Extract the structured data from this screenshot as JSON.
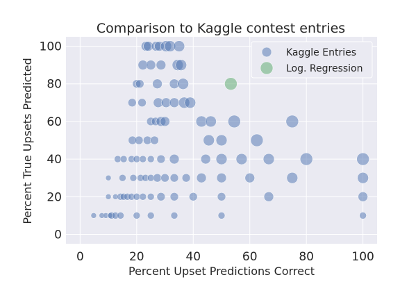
{
  "chart_data": {
    "type": "scatter",
    "title": "Comparison to Kaggle contest entries",
    "xlabel": "Percent Upset Predictions Correct",
    "ylabel": "Percent True Upsets Predicted",
    "xlim": [
      -5,
      105
    ],
    "ylim": [
      -5,
      105
    ],
    "xticks": [
      0,
      20,
      40,
      60,
      80,
      100
    ],
    "yticks": [
      0,
      20,
      40,
      60,
      80,
      100
    ],
    "grid": true,
    "legend": "top-right",
    "series": [
      {
        "name": "Kaggle Entries",
        "color": "#4c72b0",
        "points": [
          {
            "x": 4.8,
            "y": 10,
            "s": 4
          },
          {
            "x": 7.7,
            "y": 10,
            "s": 4
          },
          {
            "x": 9.1,
            "y": 10,
            "s": 4
          },
          {
            "x": 10.5,
            "y": 10,
            "s": 4
          },
          {
            "x": 11.1,
            "y": 10,
            "s": 5
          },
          {
            "x": 12.5,
            "y": 10,
            "s": 5
          },
          {
            "x": 14.3,
            "y": 10,
            "s": 5
          },
          {
            "x": 20,
            "y": 10,
            "s": 5
          },
          {
            "x": 25,
            "y": 10,
            "s": 5
          },
          {
            "x": 33.3,
            "y": 10,
            "s": 5
          },
          {
            "x": 50,
            "y": 10,
            "s": 5
          },
          {
            "x": 100,
            "y": 10,
            "s": 5
          },
          {
            "x": 10,
            "y": 20,
            "s": 4
          },
          {
            "x": 12.5,
            "y": 20,
            "s": 4
          },
          {
            "x": 14.3,
            "y": 20,
            "s": 5
          },
          {
            "x": 15.4,
            "y": 20,
            "s": 5
          },
          {
            "x": 16.7,
            "y": 20,
            "s": 5
          },
          {
            "x": 18.2,
            "y": 20,
            "s": 5
          },
          {
            "x": 20,
            "y": 20,
            "s": 5
          },
          {
            "x": 22.2,
            "y": 20,
            "s": 5
          },
          {
            "x": 25,
            "y": 20,
            "s": 5
          },
          {
            "x": 28.6,
            "y": 20,
            "s": 6
          },
          {
            "x": 33.3,
            "y": 20,
            "s": 6
          },
          {
            "x": 40,
            "y": 20,
            "s": 6
          },
          {
            "x": 50,
            "y": 20,
            "s": 6
          },
          {
            "x": 66.7,
            "y": 20,
            "s": 7
          },
          {
            "x": 100,
            "y": 20,
            "s": 7
          },
          {
            "x": 10,
            "y": 30,
            "s": 4
          },
          {
            "x": 15,
            "y": 30,
            "s": 5
          },
          {
            "x": 18.8,
            "y": 30,
            "s": 5
          },
          {
            "x": 21.4,
            "y": 30,
            "s": 5
          },
          {
            "x": 23.1,
            "y": 30,
            "s": 5
          },
          {
            "x": 25,
            "y": 30,
            "s": 5
          },
          {
            "x": 27.3,
            "y": 30,
            "s": 6
          },
          {
            "x": 30,
            "y": 30,
            "s": 6
          },
          {
            "x": 33.3,
            "y": 30,
            "s": 6
          },
          {
            "x": 37.5,
            "y": 30,
            "s": 6
          },
          {
            "x": 42.9,
            "y": 30,
            "s": 7
          },
          {
            "x": 50,
            "y": 30,
            "s": 7
          },
          {
            "x": 60,
            "y": 30,
            "s": 7
          },
          {
            "x": 75,
            "y": 30,
            "s": 8
          },
          {
            "x": 100,
            "y": 30,
            "s": 8
          },
          {
            "x": 13.3,
            "y": 40,
            "s": 5
          },
          {
            "x": 15.4,
            "y": 40,
            "s": 5
          },
          {
            "x": 18.2,
            "y": 40,
            "s": 5
          },
          {
            "x": 20,
            "y": 40,
            "s": 5
          },
          {
            "x": 22.2,
            "y": 40,
            "s": 5
          },
          {
            "x": 25,
            "y": 40,
            "s": 5
          },
          {
            "x": 28.6,
            "y": 40,
            "s": 6
          },
          {
            "x": 33.3,
            "y": 40,
            "s": 7
          },
          {
            "x": 44.4,
            "y": 40,
            "s": 7
          },
          {
            "x": 50,
            "y": 40,
            "s": 8
          },
          {
            "x": 57.1,
            "y": 40,
            "s": 8
          },
          {
            "x": 66.7,
            "y": 40,
            "s": 8
          },
          {
            "x": 80,
            "y": 40,
            "s": 9
          },
          {
            "x": 100,
            "y": 40,
            "s": 9
          },
          {
            "x": 18.5,
            "y": 50,
            "s": 6
          },
          {
            "x": 20.8,
            "y": 50,
            "s": 6
          },
          {
            "x": 23.8,
            "y": 50,
            "s": 6
          },
          {
            "x": 26.3,
            "y": 50,
            "s": 6
          },
          {
            "x": 45.5,
            "y": 50,
            "s": 8
          },
          {
            "x": 50,
            "y": 50,
            "s": 8
          },
          {
            "x": 62.5,
            "y": 50,
            "s": 9
          },
          {
            "x": 25,
            "y": 60,
            "s": 6
          },
          {
            "x": 26.7,
            "y": 60,
            "s": 6
          },
          {
            "x": 28.6,
            "y": 60,
            "s": 7
          },
          {
            "x": 30,
            "y": 60,
            "s": 7
          },
          {
            "x": 42.9,
            "y": 60,
            "s": 8
          },
          {
            "x": 46.2,
            "y": 60,
            "s": 8
          },
          {
            "x": 54.5,
            "y": 60,
            "s": 9
          },
          {
            "x": 75,
            "y": 60,
            "s": 9
          },
          {
            "x": 18.4,
            "y": 70,
            "s": 6
          },
          {
            "x": 21.9,
            "y": 70,
            "s": 6
          },
          {
            "x": 27.6,
            "y": 70,
            "s": 7
          },
          {
            "x": 30.4,
            "y": 70,
            "s": 7
          },
          {
            "x": 33.3,
            "y": 70,
            "s": 7
          },
          {
            "x": 36.8,
            "y": 70,
            "s": 8
          },
          {
            "x": 38.9,
            "y": 70,
            "s": 8
          },
          {
            "x": 20,
            "y": 80,
            "s": 6
          },
          {
            "x": 21.1,
            "y": 80,
            "s": 6
          },
          {
            "x": 27.3,
            "y": 80,
            "s": 7
          },
          {
            "x": 33.3,
            "y": 80,
            "s": 7
          },
          {
            "x": 36.4,
            "y": 80,
            "s": 8
          },
          {
            "x": 22.2,
            "y": 90,
            "s": 7
          },
          {
            "x": 25,
            "y": 90,
            "s": 7
          },
          {
            "x": 28.6,
            "y": 90,
            "s": 7
          },
          {
            "x": 34.5,
            "y": 90,
            "s": 8
          },
          {
            "x": 35.7,
            "y": 90,
            "s": 8
          },
          {
            "x": 23.3,
            "y": 100,
            "s": 7
          },
          {
            "x": 24.1,
            "y": 100,
            "s": 7
          },
          {
            "x": 26.9,
            "y": 100,
            "s": 7
          },
          {
            "x": 28,
            "y": 100,
            "s": 7
          },
          {
            "x": 30.4,
            "y": 100,
            "s": 8
          },
          {
            "x": 31.8,
            "y": 100,
            "s": 8
          },
          {
            "x": 35,
            "y": 100,
            "s": 8
          }
        ]
      },
      {
        "name": "Log. Regression",
        "color": "#55a868",
        "points": [
          {
            "x": 53.3,
            "y": 80,
            "s": 9
          }
        ]
      }
    ]
  }
}
